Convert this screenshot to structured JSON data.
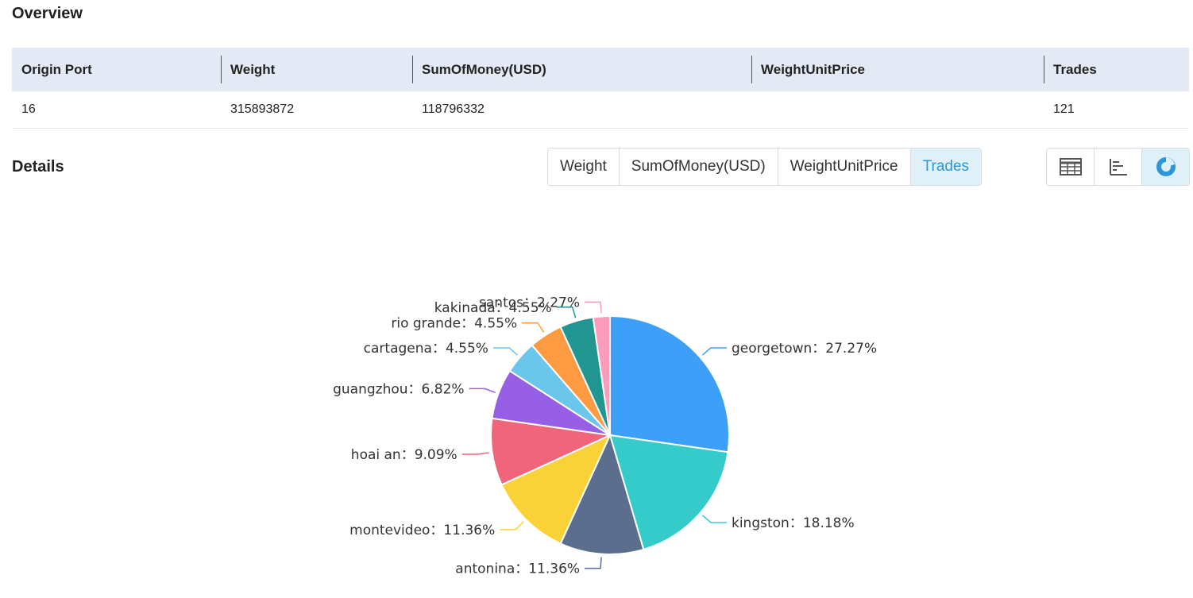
{
  "overview": {
    "title": "Overview",
    "headers": [
      "Origin Port",
      "Weight",
      "SumOfMoney(USD)",
      "WeightUnitPrice",
      "Trades"
    ],
    "row": [
      "16",
      "315893872",
      "118796332",
      "",
      "121"
    ]
  },
  "details": {
    "title": "Details",
    "tabs": [
      "Weight",
      "SumOfMoney(USD)",
      "WeightUnitPrice",
      "Trades"
    ],
    "active_tab": "Trades",
    "views": [
      {
        "icon": "table-icon"
      },
      {
        "icon": "bar-chart-icon"
      },
      {
        "icon": "pie-chart-icon",
        "active": true
      }
    ]
  },
  "colors": {
    "accent": "#2b97d8",
    "header_bg": "#e4eaf5",
    "active_bg": "#dff0f9"
  },
  "chart_data": {
    "type": "pie",
    "title": "",
    "slices": [
      {
        "name": "georgetown",
        "percent": 27.27,
        "label": "georgetown：27.27%",
        "color": "#3d9ff7"
      },
      {
        "name": "kingston",
        "percent": 18.18,
        "label": "kingston：18.18%",
        "color": "#36cbcb"
      },
      {
        "name": "antonina",
        "percent": 11.36,
        "label": "antonina：11.36%",
        "color": "#5b6e8d"
      },
      {
        "name": "montevideo",
        "percent": 11.36,
        "label": "montevideo：11.36%",
        "color": "#f9d237"
      },
      {
        "name": "hoai an",
        "percent": 9.09,
        "label": "hoai an：9.09%",
        "color": "#f0657b"
      },
      {
        "name": "guangzhou",
        "percent": 6.82,
        "label": "guangzhou：6.82%",
        "color": "#975fe5"
      },
      {
        "name": "cartagena",
        "percent": 4.55,
        "label": "cartagena：4.55%",
        "color": "#6ac6ea"
      },
      {
        "name": "rio grande",
        "percent": 4.55,
        "label": "rio grande：4.55%",
        "color": "#fd9a42"
      },
      {
        "name": "kakinada",
        "percent": 4.55,
        "label": "kakinada：4.55%",
        "color": "#219590"
      },
      {
        "name": "santos",
        "percent": 2.27,
        "label": "santos：2.27%",
        "color": "#fc9cbc"
      }
    ]
  }
}
